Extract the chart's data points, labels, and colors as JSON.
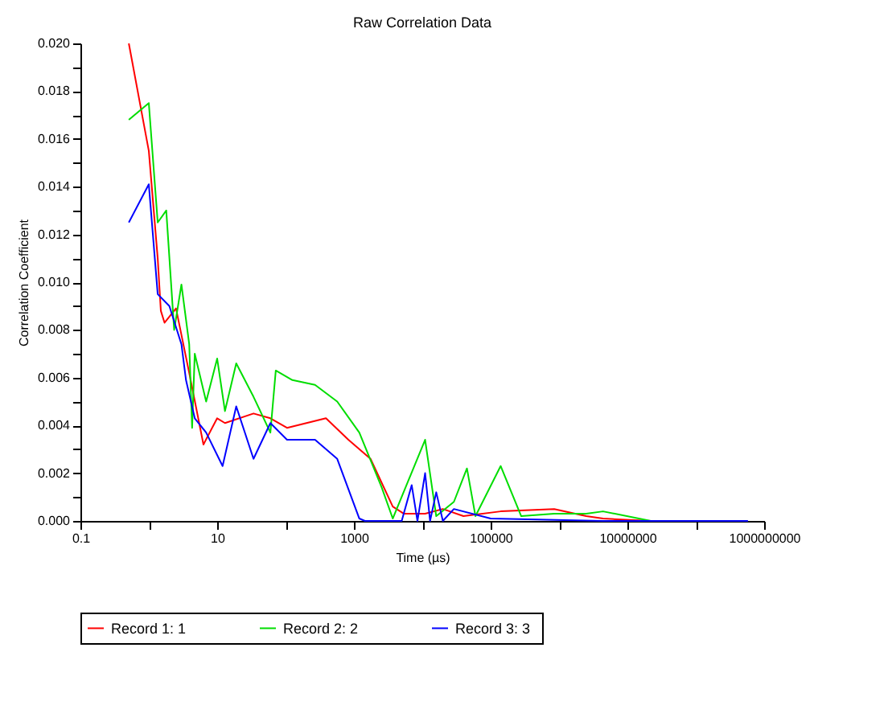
{
  "chart_data": {
    "type": "line",
    "title": "Raw Correlation Data",
    "xlabel": "Time (µs)",
    "ylabel": "Correlation Coefficient",
    "log": "x",
    "grid": false,
    "legend": "bottom",
    "marker": "none",
    "line_style": "solid",
    "xlim": [
      0.1,
      1000000000
    ],
    "xticks": [
      {
        "value": 0.1,
        "label": "0.1"
      },
      {
        "value": 1,
        "label": null
      },
      {
        "value": 10,
        "label": "10"
      },
      {
        "value": 100,
        "label": null
      },
      {
        "value": 1000,
        "label": "1000"
      },
      {
        "value": 10000,
        "label": null
      },
      {
        "value": 100000,
        "label": "100000"
      },
      {
        "value": 1000000,
        "label": null
      },
      {
        "value": 10000000,
        "label": "10000000"
      },
      {
        "value": 100000000,
        "label": null
      },
      {
        "value": 1000000000,
        "label": "1000000000"
      }
    ],
    "ylim": [
      0,
      0.02
    ],
    "yticks": [
      {
        "value": 0,
        "label": "0.000"
      },
      {
        "value": 0.001,
        "label": null
      },
      {
        "value": 0.002,
        "label": "0.002"
      },
      {
        "value": 0.003,
        "label": null
      },
      {
        "value": 0.004,
        "label": "0.004"
      },
      {
        "value": 0.005,
        "label": null
      },
      {
        "value": 0.006,
        "label": "0.006"
      },
      {
        "value": 0.007,
        "label": null
      },
      {
        "value": 0.008,
        "label": "0.008"
      },
      {
        "value": 0.009,
        "label": null
      },
      {
        "value": 0.01,
        "label": "0.010"
      },
      {
        "value": 0.011,
        "label": null
      },
      {
        "value": 0.012,
        "label": "0.012"
      },
      {
        "value": 0.013,
        "label": null
      },
      {
        "value": 0.014,
        "label": "0.014"
      },
      {
        "value": 0.015,
        "label": null
      },
      {
        "value": 0.016,
        "label": "0.016"
      },
      {
        "value": 0.017,
        "label": null
      },
      {
        "value": 0.018,
        "label": "0.018"
      },
      {
        "value": 0.019,
        "label": null
      },
      {
        "value": 0.02,
        "label": "0.020"
      }
    ],
    "series": [
      {
        "name": "Record 1:  1",
        "color": "#ff0000",
        "x": [
          0.51,
          1.0,
          1.35,
          1.5,
          1.7,
          2.5,
          3.9,
          6.3,
          10,
          13,
          34,
          60,
          105,
          390,
          830,
          1750,
          3700,
          5400,
          11000,
          20000,
          40000,
          140000,
          850000,
          2500000,
          4400000,
          22000000
        ],
        "values": [
          0.02,
          0.0155,
          0.011,
          0.0088,
          0.0083,
          0.0089,
          0.0062,
          0.0032,
          0.0043,
          0.0041,
          0.0045,
          0.0043,
          0.0039,
          0.0043,
          0.0034,
          0.0026,
          0.0006,
          0.0003,
          0.0003,
          0.0005,
          0.0002,
          0.0004,
          0.0005,
          0.0002,
          0.0001,
          0.0
        ]
      },
      {
        "name": "Record 2:  2",
        "color": "#00dd00",
        "x": [
          0.51,
          1.0,
          1.35,
          1.8,
          2.35,
          3.0,
          3.9,
          4.3,
          4.7,
          6.9,
          10,
          13,
          19,
          34,
          60,
          72,
          126,
          270,
          570,
          1200,
          2550,
          3700,
          11000,
          16000,
          29000,
          45000,
          60000,
          140000,
          280000,
          850000,
          2500000,
          4400000,
          22000000
        ],
        "values": [
          0.0168,
          0.0175,
          0.0125,
          0.013,
          0.008,
          0.0099,
          0.0074,
          0.0039,
          0.007,
          0.005,
          0.0068,
          0.0046,
          0.0066,
          0.0052,
          0.0037,
          0.0063,
          0.0059,
          0.0057,
          0.005,
          0.0037,
          0.0014,
          0.0001,
          0.0034,
          0.0002,
          0.0008,
          0.0022,
          0.0002,
          0.0023,
          0.0002,
          0.0003,
          0.0003,
          0.0004,
          0.0
        ]
      },
      {
        "name": "Record 3:  3",
        "color": "#0000ff",
        "x": [
          0.51,
          1.0,
          1.35,
          2.0,
          3.0,
          3.5,
          4.7,
          6.9,
          12,
          19,
          34,
          60,
          105,
          270,
          570,
          1200,
          1450,
          5000,
          7000,
          8500,
          11000,
          13000,
          16000,
          20000,
          29000,
          100000,
          4400000,
          580000000
        ],
        "values": [
          0.0125,
          0.0141,
          0.0095,
          0.009,
          0.0074,
          0.0059,
          0.0043,
          0.0037,
          0.0023,
          0.0048,
          0.0026,
          0.0041,
          0.0034,
          0.0034,
          0.0026,
          0.0001,
          0.0,
          0.0,
          0.0015,
          0.0,
          0.002,
          0.0,
          0.0012,
          0.0,
          0.0005,
          0.0001,
          0.0,
          0.0
        ]
      }
    ]
  }
}
